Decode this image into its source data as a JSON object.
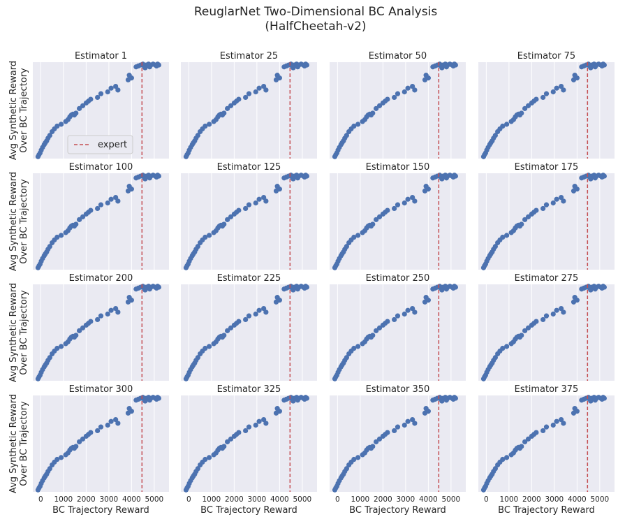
{
  "chart_data": {
    "type": "scatter",
    "title": "ReuglarNet Two-Dimensional BC Analysis",
    "subtitle": "(HalfCheetah-v2)",
    "xlabel": "BC Trajectory Reward",
    "ylabel_line1": "Avg Synthetic Reward",
    "ylabel_line2": "Over BC Trajectory",
    "xlim": [
      -350,
      5650
    ],
    "xticks": [
      0,
      1000,
      2000,
      3000,
      4000,
      5000
    ],
    "xtick_labels": [
      "0",
      "1000",
      "2000",
      "3000",
      "4000",
      "5000"
    ],
    "expert_reward": 4460,
    "legend": {
      "label": "expert",
      "location": "lower-right-of-center"
    },
    "grid": true,
    "colors": {
      "points": "#4c72b0",
      "expert_line": "#c44e52",
      "background": "#eaeaf2",
      "grid": "#ffffff"
    },
    "series_points": [
      [
        -120,
        0.0
      ],
      [
        -80,
        0.02
      ],
      [
        -30,
        0.04
      ],
      [
        20,
        0.07
      ],
      [
        80,
        0.1
      ],
      [
        150,
        0.13
      ],
      [
        200,
        0.15
      ],
      [
        260,
        0.17
      ],
      [
        320,
        0.2
      ],
      [
        400,
        0.23
      ],
      [
        500,
        0.27
      ],
      [
        600,
        0.3
      ],
      [
        720,
        0.33
      ],
      [
        900,
        0.35
      ],
      [
        1100,
        0.38
      ],
      [
        1200,
        0.4
      ],
      [
        1280,
        0.43
      ],
      [
        1350,
        0.45
      ],
      [
        1420,
        0.46
      ],
      [
        1480,
        0.45
      ],
      [
        1550,
        0.47
      ],
      [
        1700,
        0.52
      ],
      [
        1850,
        0.55
      ],
      [
        2000,
        0.58
      ],
      [
        2100,
        0.6
      ],
      [
        2200,
        0.62
      ],
      [
        2500,
        0.64
      ],
      [
        2650,
        0.68
      ],
      [
        2950,
        0.7
      ],
      [
        3100,
        0.74
      ],
      [
        3300,
        0.76
      ],
      [
        3400,
        0.72
      ],
      [
        3850,
        0.83
      ],
      [
        3900,
        0.88
      ],
      [
        4000,
        0.85
      ],
      [
        4300,
        0.98
      ],
      [
        4400,
        0.99
      ],
      [
        4500,
        1.0
      ],
      [
        4550,
        0.98
      ],
      [
        4650,
        0.99
      ],
      [
        4750,
        1.0
      ],
      [
        4850,
        0.99
      ],
      [
        4950,
        1.0
      ],
      [
        5050,
        0.99
      ],
      [
        5150,
        1.0
      ],
      [
        5200,
        0.99
      ],
      [
        4200,
        0.97
      ],
      [
        4600,
        0.96
      ],
      [
        4800,
        0.97
      ],
      [
        5100,
        0.98
      ]
    ],
    "panels": [
      {
        "title": "Estimator 1",
        "row": 0,
        "col": 0
      },
      {
        "title": "Estimator 25",
        "row": 0,
        "col": 1
      },
      {
        "title": "Estimator 50",
        "row": 0,
        "col": 2
      },
      {
        "title": "Estimator 75",
        "row": 0,
        "col": 3
      },
      {
        "title": "Estimator 100",
        "row": 1,
        "col": 0
      },
      {
        "title": "Estimator 125",
        "row": 1,
        "col": 1
      },
      {
        "title": "Estimator 150",
        "row": 1,
        "col": 2
      },
      {
        "title": "Estimator 175",
        "row": 1,
        "col": 3
      },
      {
        "title": "Estimator 200",
        "row": 2,
        "col": 0
      },
      {
        "title": "Estimator 225",
        "row": 2,
        "col": 1
      },
      {
        "title": "Estimator 250",
        "row": 2,
        "col": 2
      },
      {
        "title": "Estimator 275",
        "row": 2,
        "col": 3
      },
      {
        "title": "Estimator 300",
        "row": 3,
        "col": 0
      },
      {
        "title": "Estimator 325",
        "row": 3,
        "col": 1
      },
      {
        "title": "Estimator 350",
        "row": 3,
        "col": 2
      },
      {
        "title": "Estimator 375",
        "row": 3,
        "col": 3
      }
    ]
  }
}
